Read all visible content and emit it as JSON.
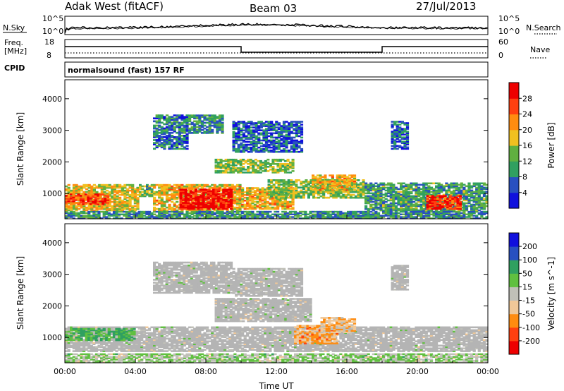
{
  "header": {
    "station": "Adak West (fitACF)",
    "beam": "Beam 03",
    "date": "27/Jul/2013"
  },
  "noise_panel": {
    "left_label": "N.Sky",
    "right_label": "N.Search",
    "left_ticks": [
      "10^5",
      "10^0"
    ],
    "right_ticks": [
      "10^5",
      "10^0"
    ]
  },
  "freq_panel": {
    "left_label_line1": "Freq.",
    "left_label_line2": "[MHz]",
    "right_label": "Nave",
    "left_ticks": [
      "18",
      "8"
    ],
    "right_ticks": [
      "60",
      "0"
    ]
  },
  "cpid": {
    "label": "CPID",
    "text": "normalsound (fast) 157 RF"
  },
  "colors": {
    "power_scale": [
      "#1010dd",
      "#2850c0",
      "#30a060",
      "#60b040",
      "#f0c020",
      "#ff8c10",
      "#ff4010",
      "#ee0000"
    ],
    "velocity_scale": [
      "#ee0000",
      "#ff4010",
      "#ff8c10",
      "#f0c898",
      "#c0c0b8",
      "#60c040",
      "#30a060",
      "#2850c0",
      "#1010dd"
    ],
    "ground_scatter": "#b4b4b4"
  },
  "chart_data": [
    {
      "type": "heatmap",
      "name": "power",
      "ylabel": "Slant Range [km]",
      "yticks": [
        1000,
        2000,
        3000,
        4000
      ],
      "ylim": [
        200,
        4600
      ],
      "xlim": [
        0,
        24
      ],
      "colorbar": {
        "label": "Power [dB]",
        "ticks": [
          "28",
          "24",
          "20",
          "16",
          "12",
          "8",
          "4"
        ],
        "range": [
          0,
          32
        ]
      },
      "regions": [
        {
          "t0": 0.0,
          "t1": 4.2,
          "r0": 450,
          "r1": 1300,
          "level": 0.55
        },
        {
          "t0": 0.0,
          "t1": 2.5,
          "r0": 650,
          "r1": 1000,
          "level": 0.8
        },
        {
          "t0": 4.2,
          "t1": 5.0,
          "r0": 900,
          "r1": 1300,
          "level": 0.4
        },
        {
          "t0": 5.0,
          "t1": 10.0,
          "r0": 450,
          "r1": 1300,
          "level": 0.6
        },
        {
          "t0": 6.5,
          "t1": 9.5,
          "r0": 500,
          "r1": 1150,
          "level": 0.95
        },
        {
          "t0": 8.5,
          "t1": 13.0,
          "r0": 1650,
          "r1": 2100,
          "level": 0.45
        },
        {
          "t0": 10.0,
          "t1": 13.0,
          "r0": 500,
          "r1": 1200,
          "level": 0.6
        },
        {
          "t0": 11.5,
          "t1": 17.0,
          "r0": 850,
          "r1": 1450,
          "level": 0.45
        },
        {
          "t0": 14.0,
          "t1": 16.5,
          "r0": 1100,
          "r1": 1600,
          "level": 0.6
        },
        {
          "t0": 17.0,
          "t1": 24.0,
          "r0": 450,
          "r1": 1350,
          "level": 0.35
        },
        {
          "t0": 20.5,
          "t1": 22.5,
          "r0": 500,
          "r1": 950,
          "level": 0.85
        },
        {
          "t0": 5.0,
          "t1": 7.0,
          "r0": 2400,
          "r1": 3500,
          "level": 0.25
        },
        {
          "t0": 7.0,
          "t1": 9.0,
          "r0": 2900,
          "r1": 3500,
          "level": 0.3
        },
        {
          "t0": 9.5,
          "t1": 13.5,
          "r0": 2300,
          "r1": 3300,
          "level": 0.2
        },
        {
          "t0": 18.5,
          "t1": 19.5,
          "r0": 2400,
          "r1": 3300,
          "level": 0.2
        },
        {
          "t0": 0.0,
          "t1": 24.0,
          "r0": 200,
          "r1": 450,
          "level": 0.3
        }
      ]
    },
    {
      "type": "heatmap",
      "name": "velocity",
      "xlabel": "Time UT",
      "ylabel": "Slant Range [km]",
      "xticks": [
        "00:00",
        "04:00",
        "08:00",
        "12:00",
        "16:00",
        "20:00",
        "00:00"
      ],
      "yticks": [
        1000,
        2000,
        3000,
        4000
      ],
      "ylim": [
        200,
        4600
      ],
      "xlim": [
        0,
        24
      ],
      "colorbar": {
        "label": "Velocity [m s^-1]",
        "ticks": [
          "200",
          "100",
          "50",
          "15",
          "-15",
          "-50",
          "-100",
          "-200"
        ],
        "range": [
          -250,
          250
        ]
      },
      "regions": [
        {
          "t0": 0.0,
          "t1": 24.0,
          "r0": 550,
          "r1": 1350,
          "vel": 0,
          "ground": true
        },
        {
          "t0": 8.5,
          "t1": 14.0,
          "r0": 1500,
          "r1": 2250,
          "vel": 0,
          "ground": true
        },
        {
          "t0": 13.0,
          "t1": 15.5,
          "r0": 800,
          "r1": 1400,
          "vel": -90
        },
        {
          "t0": 14.5,
          "t1": 16.5,
          "r0": 1150,
          "r1": 1650,
          "vel": -60
        },
        {
          "t0": 5.0,
          "t1": 9.5,
          "r0": 2400,
          "r1": 3400,
          "vel": 0,
          "ground": true
        },
        {
          "t0": 9.5,
          "t1": 13.5,
          "r0": 2300,
          "r1": 3200,
          "vel": 0,
          "ground": true
        },
        {
          "t0": 18.5,
          "t1": 19.5,
          "r0": 2500,
          "r1": 3300,
          "vel": 0,
          "ground": true
        },
        {
          "t0": 0.0,
          "t1": 24.0,
          "r0": 200,
          "r1": 500,
          "vel": 25
        },
        {
          "t0": 0.0,
          "t1": 4.0,
          "r0": 900,
          "r1": 1300,
          "vel": 80
        }
      ]
    }
  ]
}
